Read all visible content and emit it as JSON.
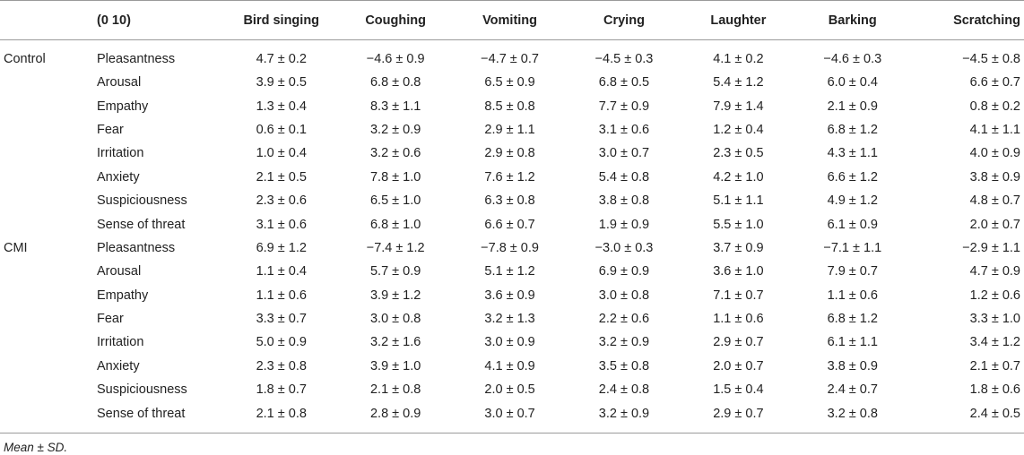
{
  "table": {
    "header": {
      "group": "",
      "measure": "(0 10)",
      "columns": [
        "Bird singing",
        "Coughing",
        "Vomiting",
        "Crying",
        "Laughter",
        "Barking",
        "Scratching"
      ]
    },
    "groups": [
      {
        "name": "Control",
        "rows": [
          {
            "measure": "Pleasantness",
            "values": [
              "4.7 ± 0.2",
              "−4.6 ± 0.9",
              "−4.7 ± 0.7",
              "−4.5 ± 0.3",
              "4.1 ± 0.2",
              "−4.6 ± 0.3",
              "−4.5 ± 0.8"
            ]
          },
          {
            "measure": "Arousal",
            "values": [
              "3.9 ± 0.5",
              "6.8 ± 0.8",
              "6.5 ± 0.9",
              "6.8 ± 0.5",
              "5.4 ± 1.2",
              "6.0 ± 0.4",
              "6.6 ± 0.7"
            ]
          },
          {
            "measure": "Empathy",
            "values": [
              "1.3 ± 0.4",
              "8.3 ± 1.1",
              "8.5 ± 0.8",
              "7.7 ± 0.9",
              "7.9 ± 1.4",
              "2.1 ± 0.9",
              "0.8 ± 0.2"
            ]
          },
          {
            "measure": "Fear",
            "values": [
              "0.6 ± 0.1",
              "3.2 ± 0.9",
              "2.9 ± 1.1",
              "3.1 ± 0.6",
              "1.2 ± 0.4",
              "6.8 ± 1.2",
              "4.1 ± 1.1"
            ]
          },
          {
            "measure": "Irritation",
            "values": [
              "1.0 ± 0.4",
              "3.2 ± 0.6",
              "2.9 ± 0.8",
              "3.0 ± 0.7",
              "2.3 ± 0.5",
              "4.3 ± 1.1",
              "4.0 ± 0.9"
            ]
          },
          {
            "measure": "Anxiety",
            "values": [
              "2.1 ± 0.5",
              "7.8 ± 1.0",
              "7.6 ± 1.2",
              "5.4 ± 0.8",
              "4.2 ± 1.0",
              "6.6 ± 1.2",
              "3.8 ± 0.9"
            ]
          },
          {
            "measure": "Suspiciousness",
            "values": [
              "2.3 ± 0.6",
              "6.5 ± 1.0",
              "6.3 ± 0.8",
              "3.8 ± 0.8",
              "5.1 ± 1.1",
              "4.9 ± 1.2",
              "4.8 ± 0.7"
            ]
          },
          {
            "measure": "Sense of threat",
            "values": [
              "3.1 ± 0.6",
              "6.8 ± 1.0",
              "6.6 ± 0.7",
              "1.9 ± 0.9",
              "5.5 ± 1.0",
              "6.1 ± 0.9",
              "2.0 ± 0.7"
            ]
          }
        ]
      },
      {
        "name": "CMI",
        "rows": [
          {
            "measure": "Pleasantness",
            "values": [
              "6.9 ± 1.2",
              "−7.4 ± 1.2",
              "−7.8 ± 0.9",
              "−3.0 ± 0.3",
              "3.7 ± 0.9",
              "−7.1 ± 1.1",
              "−2.9 ± 1.1"
            ]
          },
          {
            "measure": "Arousal",
            "values": [
              "1.1 ± 0.4",
              "5.7 ± 0.9",
              "5.1 ± 1.2",
              "6.9 ± 0.9",
              "3.6 ± 1.0",
              "7.9 ± 0.7",
              "4.7 ± 0.9"
            ]
          },
          {
            "measure": "Empathy",
            "values": [
              "1.1 ± 0.6",
              "3.9 ± 1.2",
              "3.6 ± 0.9",
              "3.0 ± 0.8",
              "7.1 ± 0.7",
              "1.1 ± 0.6",
              "1.2 ± 0.6"
            ]
          },
          {
            "measure": "Fear",
            "values": [
              "3.3 ± 0.7",
              "3.0 ± 0.8",
              "3.2 ± 1.3",
              "2.2 ± 0.6",
              "1.1 ± 0.6",
              "6.8 ± 1.2",
              "3.3 ± 1.0"
            ]
          },
          {
            "measure": "Irritation",
            "values": [
              "5.0 ± 0.9",
              "3.2 ± 1.6",
              "3.0 ± 0.9",
              "3.2 ± 0.9",
              "2.9 ± 0.7",
              "6.1 ± 1.1",
              "3.4 ± 1.2"
            ]
          },
          {
            "measure": "Anxiety",
            "values": [
              "2.3 ± 0.8",
              "3.9 ± 1.0",
              "4.1 ± 0.9",
              "3.5 ± 0.8",
              "2.0 ± 0.7",
              "3.8 ± 0.9",
              "2.1 ± 0.7"
            ]
          },
          {
            "measure": "Suspiciousness",
            "values": [
              "1.8 ± 0.7",
              "2.1 ± 0.8",
              "2.0 ± 0.5",
              "2.4 ± 0.8",
              "1.5 ± 0.4",
              "2.4 ± 0.7",
              "1.8 ± 0.6"
            ]
          },
          {
            "measure": "Sense of threat",
            "values": [
              "2.1 ± 0.8",
              "2.8 ± 0.9",
              "3.0 ± 0.7",
              "3.2 ± 0.9",
              "2.9 ± 0.7",
              "3.2 ± 0.8",
              "2.4 ± 0.5"
            ]
          }
        ]
      }
    ],
    "footnote": "Mean ± SD."
  }
}
